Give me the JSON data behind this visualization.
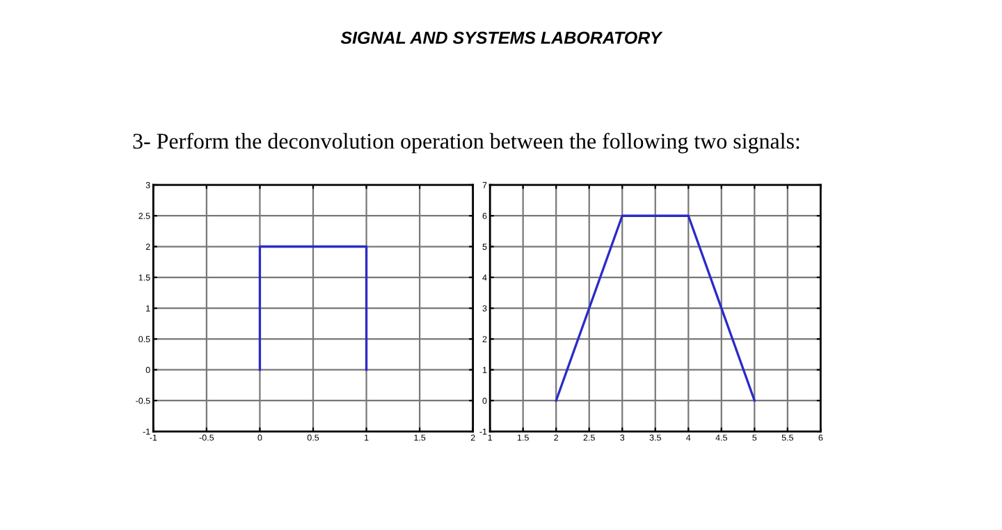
{
  "chart_data": [
    {
      "type": "line",
      "title": "SIGNAL AND SYSTEMS LABORATORY",
      "subtitle": "3- Perform the deconvolution operation between the following two signals:",
      "x": [
        0,
        0,
        1,
        1
      ],
      "series": [
        {
          "color": "#2b2bc8",
          "values": [
            0,
            2,
            2,
            0
          ]
        }
      ],
      "xlim": [
        -1,
        2
      ],
      "xticks": [
        -1,
        -0.5,
        0,
        0.5,
        1,
        1.5,
        2
      ],
      "ylim": [
        -1,
        3
      ],
      "yticks": [
        -1,
        -0.5,
        0,
        0.5,
        1,
        1.5,
        2,
        2.5,
        3
      ],
      "grid": true
    },
    {
      "type": "line",
      "x": [
        2,
        3,
        4,
        5
      ],
      "series": [
        {
          "color": "#2b2bc8",
          "values": [
            0,
            6,
            6,
            0
          ]
        }
      ],
      "xlim": [
        1,
        6
      ],
      "xticks": [
        1,
        1.5,
        2,
        2.5,
        3,
        3.5,
        4,
        4.5,
        5,
        5.5,
        6
      ],
      "ylim": [
        -1,
        7
      ],
      "yticks": [
        -1,
        0,
        1,
        2,
        3,
        4,
        5,
        6,
        7
      ],
      "grid": true
    }
  ]
}
